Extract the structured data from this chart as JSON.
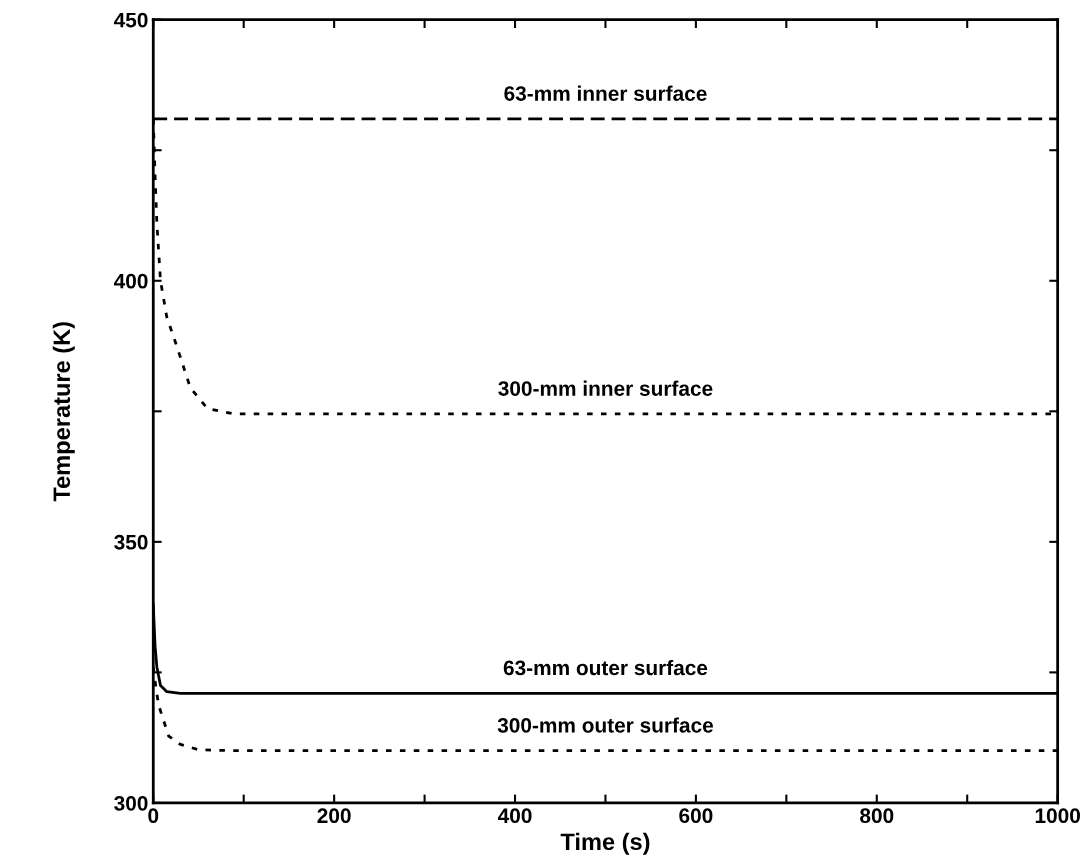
{
  "chart_data": {
    "type": "line",
    "xlabel": "Time (s)",
    "ylabel": "Temperature (K)",
    "xlim": [
      0,
      1000
    ],
    "ylim": [
      300,
      450
    ],
    "xticks": [
      0,
      {
        "value": 100,
        "label": null
      },
      200,
      {
        "value": 300,
        "label": null
      },
      400,
      {
        "value": 500,
        "label": null
      },
      600,
      {
        "value": 700,
        "label": null
      },
      800,
      {
        "value": 900,
        "label": null
      },
      1000
    ],
    "yticks": [
      300,
      {
        "value": 325,
        "label": null
      },
      350,
      {
        "value": 375,
        "label": null
      },
      400,
      {
        "value": 425,
        "label": null
      },
      450
    ],
    "grid": false,
    "legend": false,
    "marker": "none",
    "series": [
      {
        "name": "63-mm inner surface",
        "color": "#000000",
        "line_style": "dashed",
        "x": [
          0,
          1000
        ],
        "values": [
          431,
          431
        ]
      },
      {
        "name": "300-mm inner surface",
        "color": "#000000",
        "line_style": "dotted",
        "x": [
          0,
          2,
          4,
          8,
          15,
          25,
          41,
          60,
          90,
          1000
        ],
        "values": [
          431,
          420,
          411,
          400,
          393,
          388,
          379.5,
          375.5,
          374.5,
          374.5
        ]
      },
      {
        "name": "63-mm outer surface",
        "color": "#000000",
        "line_style": "solid",
        "x": [
          0,
          2,
          4,
          8,
          15,
          30,
          1000
        ],
        "values": [
          338,
          330,
          326,
          322.5,
          321.3,
          321,
          321
        ]
      },
      {
        "name": "300-mm outer surface",
        "color": "#000000",
        "line_style": "dotted",
        "x": [
          0,
          3,
          6,
          17,
          30,
          50,
          90,
          1000
        ],
        "values": [
          326,
          322,
          318.7,
          312.8,
          311.2,
          310.2,
          310,
          310
        ]
      }
    ]
  }
}
